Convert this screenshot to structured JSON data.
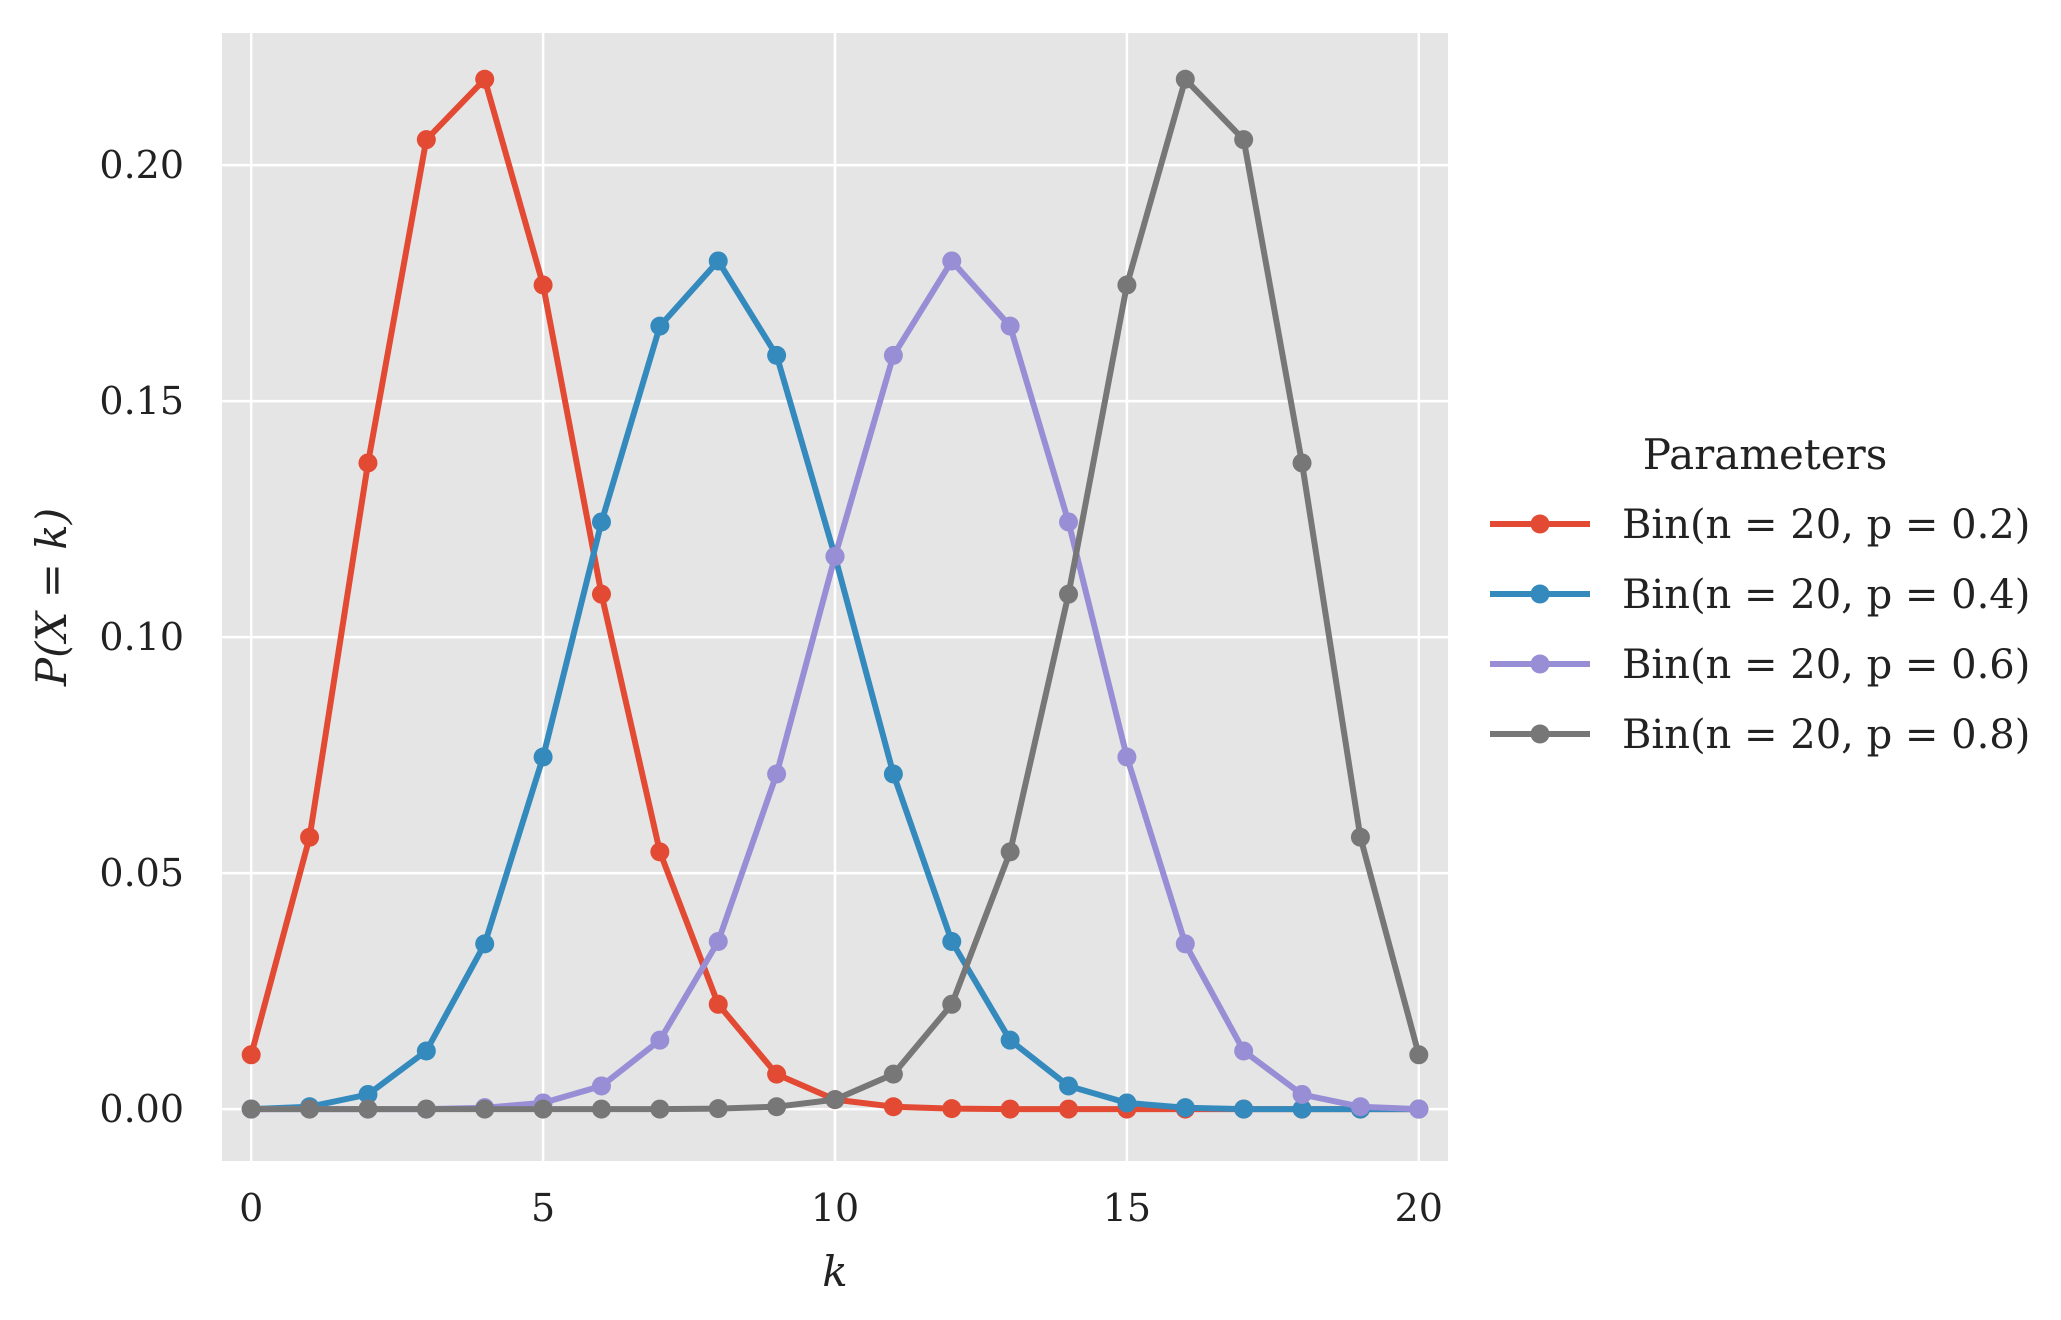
{
  "chart_data": {
    "type": "line",
    "xlabel": "k",
    "ylabel": "P(X = k)",
    "xlim": [
      -0.5,
      20.5
    ],
    "ylim": [
      -0.011,
      0.228
    ],
    "xticks": [
      0,
      5,
      10,
      15,
      20
    ],
    "yticks": [
      0.0,
      0.05,
      0.1,
      0.15,
      0.2
    ],
    "xtick_labels": [
      "0",
      "5",
      "10",
      "15",
      "20"
    ],
    "ytick_labels": [
      "0.00",
      "0.05",
      "0.10",
      "0.15",
      "0.20"
    ],
    "grid": true,
    "legend": {
      "title": "Parameters",
      "placement": "outside-right"
    },
    "x": [
      0,
      1,
      2,
      3,
      4,
      5,
      6,
      7,
      8,
      9,
      10,
      11,
      12,
      13,
      14,
      15,
      16,
      17,
      18,
      19,
      20
    ],
    "series": [
      {
        "name": "Bin(n = 20, p = 0.2)",
        "color": "#E24A33",
        "values": [
          0.0115,
          0.0576,
          0.1369,
          0.2054,
          0.2182,
          0.1746,
          0.1091,
          0.0545,
          0.0222,
          0.0074,
          0.002,
          0.0005,
          0.0001,
          0.0,
          0.0,
          0.0,
          0.0,
          0.0,
          0.0,
          0.0,
          0.0
        ]
      },
      {
        "name": "Bin(n = 20, p = 0.4)",
        "color": "#348ABD",
        "values": [
          0.0,
          0.0005,
          0.0031,
          0.0123,
          0.035,
          0.0746,
          0.1244,
          0.1659,
          0.1797,
          0.1597,
          0.1171,
          0.071,
          0.0355,
          0.0146,
          0.0049,
          0.0013,
          0.0003,
          0.0,
          0.0,
          0.0,
          0.0
        ]
      },
      {
        "name": "Bin(n = 20, p = 0.6)",
        "color": "#988ED5",
        "values": [
          0.0,
          0.0,
          0.0,
          0.0,
          0.0003,
          0.0013,
          0.0049,
          0.0146,
          0.0355,
          0.071,
          0.1171,
          0.1597,
          0.1797,
          0.1659,
          0.1244,
          0.0746,
          0.035,
          0.0123,
          0.0031,
          0.0005,
          0.0
        ]
      },
      {
        "name": "Bin(n = 20, p = 0.8)",
        "color": "#777777",
        "values": [
          0.0,
          0.0,
          0.0,
          0.0,
          0.0,
          0.0,
          0.0,
          0.0,
          0.0001,
          0.0005,
          0.002,
          0.0074,
          0.0222,
          0.0545,
          0.1091,
          0.1746,
          0.2182,
          0.2054,
          0.1369,
          0.0576,
          0.0115
        ]
      }
    ]
  }
}
